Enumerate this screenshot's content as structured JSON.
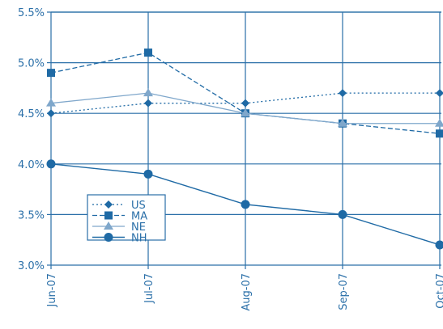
{
  "chart_data": {
    "type": "line",
    "categories": [
      "Jun-07",
      "Jul-07",
      "Aug-07",
      "Sep-07",
      "Oct-07"
    ],
    "y_tick_labels": [
      "3.0%",
      "3.5%",
      "4.0%",
      "4.5%",
      "5.0%",
      "5.5%"
    ],
    "ylim": [
      3.0,
      5.5
    ],
    "grid": true,
    "legend_position": "bottom-left",
    "colors": {
      "line": "#1f6aa5",
      "light_line": "#7fa7cb",
      "grid": "#2a6fa8",
      "text": "#2a6fa8"
    },
    "series": [
      {
        "name": "US",
        "marker": "diamond",
        "values": [
          4.5,
          4.6,
          4.6,
          4.7,
          4.7
        ]
      },
      {
        "name": "MA",
        "marker": "square",
        "values": [
          4.9,
          5.1,
          4.5,
          4.4,
          4.3
        ]
      },
      {
        "name": "NE",
        "marker": "triangle",
        "values": [
          4.6,
          4.7,
          4.5,
          4.4,
          4.4
        ]
      },
      {
        "name": "NH",
        "marker": "circle",
        "values": [
          4.0,
          3.9,
          3.6,
          3.5,
          3.2
        ]
      }
    ]
  }
}
